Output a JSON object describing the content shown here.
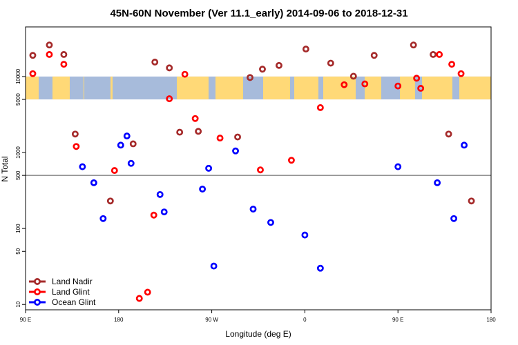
{
  "chart_data": {
    "type": "scatter",
    "title": "45N-60N November (Ver 11.1_early)   2014-09-06 to 2018-12-31",
    "xlabel": "Longitude (deg E)",
    "ylabel": "N Total",
    "x_scale": "linear",
    "y_scale": "log",
    "xlim": [
      90,
      540
    ],
    "ylim": [
      8.5,
      45000
    ],
    "x_ticks": [
      {
        "value": 90,
        "label": "90 E"
      },
      {
        "value": 180,
        "label": "180"
      },
      {
        "value": 270,
        "label": "90 W"
      },
      {
        "value": 360,
        "label": "0"
      },
      {
        "value": 450,
        "label": "90 E"
      },
      {
        "value": 540,
        "label": "180"
      }
    ],
    "y_ticks": [
      {
        "value": 10,
        "label": "10"
      },
      {
        "value": 50,
        "label": "50"
      },
      {
        "value": 100,
        "label": "100"
      },
      {
        "value": 500,
        "label": "500"
      },
      {
        "value": 1000,
        "label": "1000"
      },
      {
        "value": 5000,
        "label": "5000"
      },
      {
        "value": 10000,
        "label": "10000"
      }
    ],
    "reference_line": {
      "y": 500
    },
    "map_strip": {
      "y_from": 5000,
      "y_to": 10000,
      "ocean_color": "#a7bbdb",
      "land_color": "#ffd977"
    },
    "legend_position": "bottom-left",
    "series": [
      {
        "name": "Land Nadir",
        "color": "#a52a2a",
        "x": [
          97,
          113,
          127,
          138,
          172,
          194,
          215,
          229,
          239,
          257,
          295,
          307,
          319,
          335,
          361,
          385,
          407,
          427,
          465,
          484,
          499,
          521
        ],
        "y": [
          19000,
          26000,
          19500,
          1750,
          230,
          1300,
          15500,
          13000,
          1850,
          1900,
          1600,
          9700,
          12500,
          14000,
          23000,
          15000,
          10100,
          19000,
          26000,
          19500,
          1750,
          230
        ]
      },
      {
        "name": "Land Glint",
        "color": "#ff0000",
        "x": [
          97,
          113,
          127,
          139,
          176,
          200,
          208,
          214,
          229,
          244,
          254,
          278,
          317,
          347,
          375,
          398,
          418,
          450,
          468,
          472,
          511,
          490,
          502
        ],
        "y": [
          10900,
          19500,
          14500,
          1200,
          580,
          12,
          14.5,
          150,
          5100,
          10700,
          2800,
          1550,
          590,
          790,
          3900,
          7800,
          8000,
          7500,
          9500,
          7000,
          10900,
          19500,
          14500
        ]
      },
      {
        "name": "Ocean Glint",
        "color": "#0000ff",
        "x": [
          145,
          156,
          165,
          182,
          188,
          192,
          220,
          224,
          261,
          267,
          272,
          293,
          310,
          327,
          360,
          375,
          450,
          488,
          504,
          514
        ],
        "y": [
          650,
          400,
          135,
          1250,
          1650,
          720,
          280,
          165,
          330,
          620,
          32,
          1050,
          180,
          120,
          82,
          30,
          650,
          400,
          135,
          1250
        ]
      }
    ]
  }
}
